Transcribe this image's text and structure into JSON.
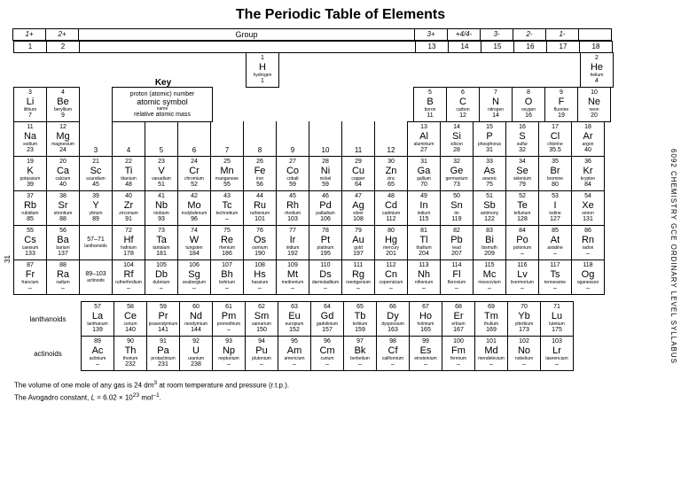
{
  "title": "The Periodic Table of Elements",
  "key_title": "Key",
  "key_box": {
    "l1": "proton (atomic) number",
    "l2": "atomic symbol",
    "l3": "name",
    "l4": "relative atomic mass"
  },
  "group_label": "Group",
  "group_numbers": [
    "1",
    "2",
    "13",
    "14",
    "15",
    "16",
    "17",
    "18"
  ],
  "hand_left": [
    "1+",
    "2+"
  ],
  "hand_right": [
    "3+",
    "+4/4-",
    "3-",
    "2-",
    "1-"
  ],
  "side_right": "6092 CHEMISTRY GCE ORDINARY LEVEL SYLLABUS",
  "side_left": "31",
  "lanth_label": "lanthanoids",
  "act_label": "actinoids",
  "footnote1_a": "The volume of one mole of any gas is 24 dm",
  "footnote1_b": " at room temperature and pressure (r.t.p.).",
  "footnote2_a": "The Avogadro constant, ",
  "footnote2_b": "L",
  "footnote2_c": " = 6.02 × 10",
  "footnote2_d": " mol",
  "footnote2_e": ".",
  "elements": {
    "H": {
      "n": "1",
      "s": "H",
      "nm": "hydrogen",
      "m": "1"
    },
    "He": {
      "n": "2",
      "s": "He",
      "nm": "helium",
      "m": "4"
    },
    "Li": {
      "n": "3",
      "s": "Li",
      "nm": "lithium",
      "m": "7"
    },
    "Be": {
      "n": "4",
      "s": "Be",
      "nm": "beryllium",
      "m": "9"
    },
    "B": {
      "n": "5",
      "s": "B",
      "nm": "boron",
      "m": "11"
    },
    "C": {
      "n": "6",
      "s": "C",
      "nm": "carbon",
      "m": "12"
    },
    "N": {
      "n": "7",
      "s": "N",
      "nm": "nitrogen",
      "m": "14"
    },
    "O": {
      "n": "8",
      "s": "O",
      "nm": "oxygen",
      "m": "16"
    },
    "F": {
      "n": "9",
      "s": "F",
      "nm": "fluorine",
      "m": "19"
    },
    "Ne": {
      "n": "10",
      "s": "Ne",
      "nm": "neon",
      "m": "20"
    },
    "Na": {
      "n": "11",
      "s": "Na",
      "nm": "sodium",
      "m": "23"
    },
    "Mg": {
      "n": "12",
      "s": "Mg",
      "nm": "magnesium",
      "m": "24"
    },
    "Al": {
      "n": "13",
      "s": "Al",
      "nm": "aluminium",
      "m": "27"
    },
    "Si": {
      "n": "14",
      "s": "Si",
      "nm": "silicon",
      "m": "28"
    },
    "P": {
      "n": "15",
      "s": "P",
      "nm": "phosphorus",
      "m": "31"
    },
    "S": {
      "n": "16",
      "s": "S",
      "nm": "sulfur",
      "m": "32"
    },
    "Cl": {
      "n": "17",
      "s": "Cl",
      "nm": "chlorine",
      "m": "35.5"
    },
    "Ar": {
      "n": "18",
      "s": "Ar",
      "nm": "argon",
      "m": "40"
    },
    "K": {
      "n": "19",
      "s": "K",
      "nm": "potassium",
      "m": "39"
    },
    "Ca": {
      "n": "20",
      "s": "Ca",
      "nm": "calcium",
      "m": "40"
    },
    "Sc": {
      "n": "21",
      "s": "Sc",
      "nm": "scandium",
      "m": "45"
    },
    "Ti": {
      "n": "22",
      "s": "Ti",
      "nm": "titanium",
      "m": "48"
    },
    "V": {
      "n": "23",
      "s": "V",
      "nm": "vanadium",
      "m": "51"
    },
    "Cr": {
      "n": "24",
      "s": "Cr",
      "nm": "chromium",
      "m": "52"
    },
    "Mn": {
      "n": "25",
      "s": "Mn",
      "nm": "manganese",
      "m": "55"
    },
    "Fe": {
      "n": "26",
      "s": "Fe",
      "nm": "iron",
      "m": "56"
    },
    "Co": {
      "n": "27",
      "s": "Co",
      "nm": "cobalt",
      "m": "59"
    },
    "Ni": {
      "n": "28",
      "s": "Ni",
      "nm": "nickel",
      "m": "59"
    },
    "Cu": {
      "n": "29",
      "s": "Cu",
      "nm": "copper",
      "m": "64"
    },
    "Zn": {
      "n": "30",
      "s": "Zn",
      "nm": "zinc",
      "m": "65"
    },
    "Ga": {
      "n": "31",
      "s": "Ga",
      "nm": "gallium",
      "m": "70"
    },
    "Ge": {
      "n": "32",
      "s": "Ge",
      "nm": "germanium",
      "m": "73"
    },
    "As": {
      "n": "33",
      "s": "As",
      "nm": "arsenic",
      "m": "75"
    },
    "Se": {
      "n": "34",
      "s": "Se",
      "nm": "selenium",
      "m": "79"
    },
    "Br": {
      "n": "35",
      "s": "Br",
      "nm": "bromine",
      "m": "80"
    },
    "Kr": {
      "n": "36",
      "s": "Kr",
      "nm": "krypton",
      "m": "84"
    },
    "Rb": {
      "n": "37",
      "s": "Rb",
      "nm": "rubidium",
      "m": "85"
    },
    "Sr": {
      "n": "38",
      "s": "Sr",
      "nm": "strontium",
      "m": "88"
    },
    "Y": {
      "n": "39",
      "s": "Y",
      "nm": "yttrium",
      "m": "89"
    },
    "Zr": {
      "n": "40",
      "s": "Zr",
      "nm": "zirconium",
      "m": "91"
    },
    "Nb": {
      "n": "41",
      "s": "Nb",
      "nm": "niobium",
      "m": "93"
    },
    "Mo": {
      "n": "42",
      "s": "Mo",
      "nm": "molybdenum",
      "m": "96"
    },
    "Tc": {
      "n": "43",
      "s": "Tc",
      "nm": "technetium",
      "m": "–"
    },
    "Ru": {
      "n": "44",
      "s": "Ru",
      "nm": "ruthenium",
      "m": "101"
    },
    "Rh": {
      "n": "45",
      "s": "Rh",
      "nm": "rhodium",
      "m": "103"
    },
    "Pd": {
      "n": "46",
      "s": "Pd",
      "nm": "palladium",
      "m": "106"
    },
    "Ag": {
      "n": "47",
      "s": "Ag",
      "nm": "silver",
      "m": "108"
    },
    "Cd": {
      "n": "48",
      "s": "Cd",
      "nm": "cadmium",
      "m": "112"
    },
    "In": {
      "n": "49",
      "s": "In",
      "nm": "indium",
      "m": "115"
    },
    "Sn": {
      "n": "50",
      "s": "Sn",
      "nm": "tin",
      "m": "119"
    },
    "Sb": {
      "n": "51",
      "s": "Sb",
      "nm": "antimony",
      "m": "122"
    },
    "Te": {
      "n": "52",
      "s": "Te",
      "nm": "tellurium",
      "m": "128"
    },
    "I": {
      "n": "53",
      "s": "I",
      "nm": "iodine",
      "m": "127"
    },
    "Xe": {
      "n": "54",
      "s": "Xe",
      "nm": "xenon",
      "m": "131"
    },
    "Cs": {
      "n": "55",
      "s": "Cs",
      "nm": "caesium",
      "m": "133"
    },
    "Ba": {
      "n": "56",
      "s": "Ba",
      "nm": "barium",
      "m": "137"
    },
    "LaLu": {
      "n": "57–71",
      "s": "",
      "nm": "lanthanoids",
      "m": ""
    },
    "Hf": {
      "n": "72",
      "s": "Hf",
      "nm": "hafnium",
      "m": "178"
    },
    "Ta": {
      "n": "73",
      "s": "Ta",
      "nm": "tantalum",
      "m": "181"
    },
    "W": {
      "n": "74",
      "s": "W",
      "nm": "tungsten",
      "m": "184"
    },
    "Re": {
      "n": "75",
      "s": "Re",
      "nm": "rhenium",
      "m": "186"
    },
    "Os": {
      "n": "76",
      "s": "Os",
      "nm": "osmium",
      "m": "190"
    },
    "Ir": {
      "n": "77",
      "s": "Ir",
      "nm": "iridium",
      "m": "192"
    },
    "Pt": {
      "n": "78",
      "s": "Pt",
      "nm": "platinum",
      "m": "195"
    },
    "Au": {
      "n": "79",
      "s": "Au",
      "nm": "gold",
      "m": "197"
    },
    "Hg": {
      "n": "80",
      "s": "Hg",
      "nm": "mercury",
      "m": "201"
    },
    "Tl": {
      "n": "81",
      "s": "Tl",
      "nm": "thallium",
      "m": "204"
    },
    "Pb": {
      "n": "82",
      "s": "Pb",
      "nm": "lead",
      "m": "207"
    },
    "Bi": {
      "n": "83",
      "s": "Bi",
      "nm": "bismuth",
      "m": "209"
    },
    "Po": {
      "n": "84",
      "s": "Po",
      "nm": "polonium",
      "m": "–"
    },
    "At": {
      "n": "85",
      "s": "At",
      "nm": "astatine",
      "m": "–"
    },
    "Rn": {
      "n": "86",
      "s": "Rn",
      "nm": "radon",
      "m": "–"
    },
    "Fr": {
      "n": "87",
      "s": "Fr",
      "nm": "francium",
      "m": "–"
    },
    "Ra": {
      "n": "88",
      "s": "Ra",
      "nm": "radium",
      "m": "–"
    },
    "AcLr": {
      "n": "89–103",
      "s": "",
      "nm": "actinoids",
      "m": ""
    },
    "Rf": {
      "n": "104",
      "s": "Rf",
      "nm": "rutherfordium",
      "m": "–"
    },
    "Db": {
      "n": "105",
      "s": "Db",
      "nm": "dubnium",
      "m": "–"
    },
    "Sg": {
      "n": "106",
      "s": "Sg",
      "nm": "seaborgium",
      "m": "–"
    },
    "Bh": {
      "n": "107",
      "s": "Bh",
      "nm": "bohrium",
      "m": "–"
    },
    "Hs": {
      "n": "108",
      "s": "Hs",
      "nm": "hassium",
      "m": "–"
    },
    "Mt": {
      "n": "109",
      "s": "Mt",
      "nm": "meitnerium",
      "m": "–"
    },
    "Ds": {
      "n": "110",
      "s": "Ds",
      "nm": "darmstadtium",
      "m": "–"
    },
    "Rg": {
      "n": "111",
      "s": "Rg",
      "nm": "roentgenium",
      "m": "–"
    },
    "Cn": {
      "n": "112",
      "s": "Cn",
      "nm": "copernicium",
      "m": "–"
    },
    "Nh": {
      "n": "113",
      "s": "Nh",
      "nm": "nihonium",
      "m": "–"
    },
    "Fl": {
      "n": "114",
      "s": "Fl",
      "nm": "flerovium",
      "m": "–"
    },
    "Mc": {
      "n": "115",
      "s": "Mc",
      "nm": "moscovium",
      "m": "–"
    },
    "Lv": {
      "n": "116",
      "s": "Lv",
      "nm": "livermorium",
      "m": "–"
    },
    "Ts": {
      "n": "117",
      "s": "Ts",
      "nm": "tennessine",
      "m": "–"
    },
    "Og": {
      "n": "118",
      "s": "Og",
      "nm": "oganesson",
      "m": "–"
    },
    "La": {
      "n": "57",
      "s": "La",
      "nm": "lanthanum",
      "m": "139"
    },
    "Ce": {
      "n": "58",
      "s": "Ce",
      "nm": "cerium",
      "m": "140"
    },
    "Pr": {
      "n": "59",
      "s": "Pr",
      "nm": "praseodymium",
      "m": "141"
    },
    "Nd": {
      "n": "60",
      "s": "Nd",
      "nm": "neodymium",
      "m": "144"
    },
    "Pm": {
      "n": "61",
      "s": "Pm",
      "nm": "promethium",
      "m": "–"
    },
    "Sm": {
      "n": "62",
      "s": "Sm",
      "nm": "samarium",
      "m": "150"
    },
    "Eu": {
      "n": "63",
      "s": "Eu",
      "nm": "europium",
      "m": "152"
    },
    "Gd": {
      "n": "64",
      "s": "Gd",
      "nm": "gadolinium",
      "m": "157"
    },
    "Tb": {
      "n": "65",
      "s": "Tb",
      "nm": "terbium",
      "m": "159"
    },
    "Dy": {
      "n": "66",
      "s": "Dy",
      "nm": "dysprosium",
      "m": "163"
    },
    "Ho": {
      "n": "67",
      "s": "Ho",
      "nm": "holmium",
      "m": "165"
    },
    "Er": {
      "n": "68",
      "s": "Er",
      "nm": "erbium",
      "m": "167"
    },
    "Tm": {
      "n": "69",
      "s": "Tm",
      "nm": "thulium",
      "m": "169"
    },
    "Yb": {
      "n": "70",
      "s": "Yb",
      "nm": "ytterbium",
      "m": "173"
    },
    "Lu": {
      "n": "71",
      "s": "Lu",
      "nm": "lutetium",
      "m": "175"
    },
    "Ac": {
      "n": "89",
      "s": "Ac",
      "nm": "actinium",
      "m": "–"
    },
    "Th": {
      "n": "90",
      "s": "Th",
      "nm": "thorium",
      "m": "232"
    },
    "Pa": {
      "n": "91",
      "s": "Pa",
      "nm": "protactinium",
      "m": "231"
    },
    "U": {
      "n": "92",
      "s": "U",
      "nm": "uranium",
      "m": "238"
    },
    "Np": {
      "n": "93",
      "s": "Np",
      "nm": "neptunium",
      "m": "–"
    },
    "Pu": {
      "n": "94",
      "s": "Pu",
      "nm": "plutonium",
      "m": "–"
    },
    "Am": {
      "n": "95",
      "s": "Am",
      "nm": "americium",
      "m": "–"
    },
    "Cm": {
      "n": "96",
      "s": "Cm",
      "nm": "curium",
      "m": "–"
    },
    "Bk": {
      "n": "97",
      "s": "Bk",
      "nm": "berkelium",
      "m": "–"
    },
    "Cf": {
      "n": "98",
      "s": "Cf",
      "nm": "californium",
      "m": "–"
    },
    "Es": {
      "n": "99",
      "s": "Es",
      "nm": "einsteinium",
      "m": "–"
    },
    "Fm": {
      "n": "100",
      "s": "Fm",
      "nm": "fermium",
      "m": "–"
    },
    "Md": {
      "n": "101",
      "s": "Md",
      "nm": "mendelevium",
      "m": "–"
    },
    "No": {
      "n": "102",
      "s": "No",
      "nm": "nobelium",
      "m": "–"
    },
    "Lr": {
      "n": "103",
      "s": "Lr",
      "nm": "lawrencium",
      "m": "–"
    }
  },
  "main_rows": [
    [
      null,
      null,
      null,
      null,
      null,
      null,
      null,
      null,
      null,
      null,
      null,
      null,
      null,
      null,
      null,
      null,
      null,
      null
    ],
    [
      "Li",
      "Be",
      null,
      null,
      null,
      null,
      null,
      null,
      null,
      null,
      null,
      null,
      "B",
      "C",
      "N",
      "O",
      "F",
      "Ne"
    ],
    [
      "Na",
      "Mg",
      null,
      null,
      null,
      null,
      null,
      null,
      null,
      null,
      null,
      null,
      "Al",
      "Si",
      "P",
      "S",
      "Cl",
      "Ar"
    ],
    [
      "K",
      "Ca",
      "Sc",
      "Ti",
      "V",
      "Cr",
      "Mn",
      "Fe",
      "Co",
      "Ni",
      "Cu",
      "Zn",
      "Ga",
      "Ge",
      "As",
      "Se",
      "Br",
      "Kr"
    ],
    [
      "Rb",
      "Sr",
      "Y",
      "Zr",
      "Nb",
      "Mo",
      "Tc",
      "Ru",
      "Rh",
      "Pd",
      "Ag",
      "Cd",
      "In",
      "Sn",
      "Sb",
      "Te",
      "I",
      "Xe"
    ],
    [
      "Cs",
      "Ba",
      "LaLu",
      "Hf",
      "Ta",
      "W",
      "Re",
      "Os",
      "Ir",
      "Pt",
      "Au",
      "Hg",
      "Tl",
      "Pb",
      "Bi",
      "Po",
      "At",
      "Rn"
    ],
    [
      "Fr",
      "Ra",
      "AcLr",
      "Rf",
      "Db",
      "Sg",
      "Bh",
      "Hs",
      "Mt",
      "Ds",
      "Rg",
      "Cn",
      "Nh",
      "Fl",
      "Mc",
      "Lv",
      "Ts",
      "Og"
    ]
  ],
  "lanth_row": [
    "La",
    "Ce",
    "Pr",
    "Nd",
    "Pm",
    "Sm",
    "Eu",
    "Gd",
    "Tb",
    "Dy",
    "Ho",
    "Er",
    "Tm",
    "Yb",
    "Lu"
  ],
  "act_row": [
    "Ac",
    "Th",
    "Pa",
    "U",
    "Np",
    "Pu",
    "Am",
    "Cm",
    "Bk",
    "Cf",
    "Es",
    "Fm",
    "Md",
    "No",
    "Lr"
  ],
  "transition_headers": [
    "3",
    "4",
    "5",
    "6",
    "7",
    "8",
    "9",
    "10",
    "11",
    "12"
  ]
}
